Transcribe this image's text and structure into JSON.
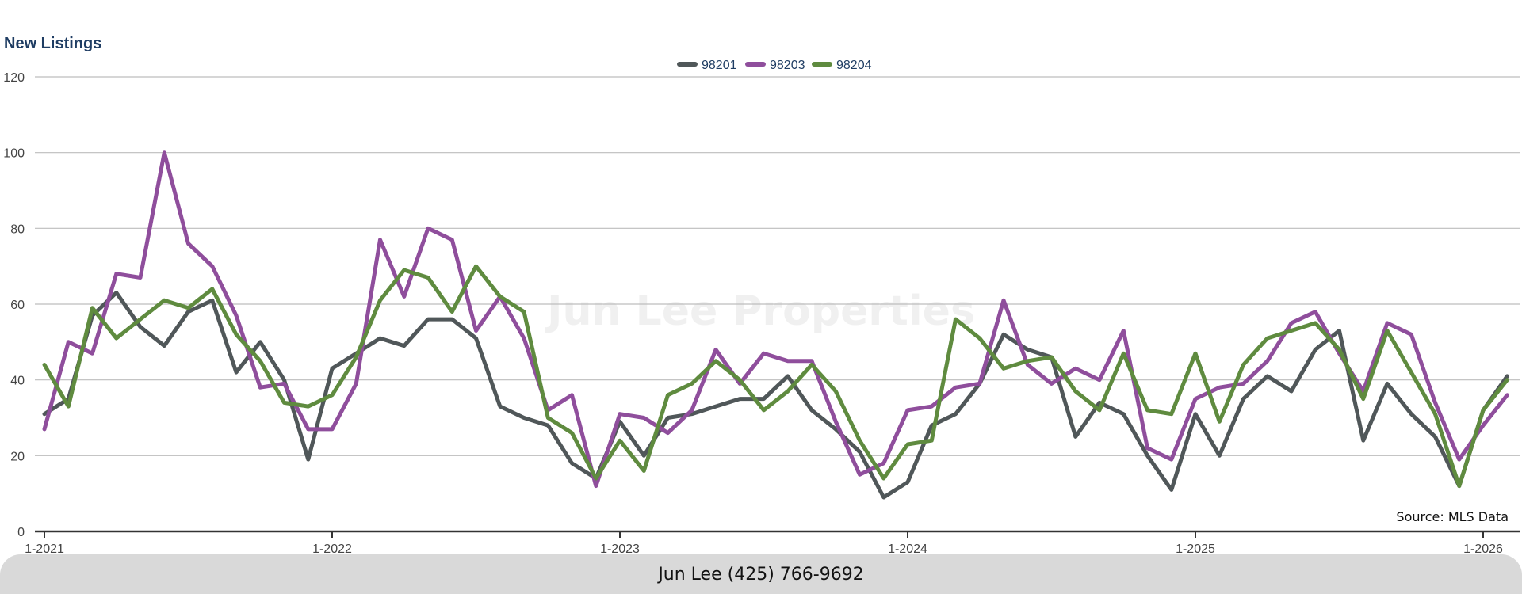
{
  "colors": {
    "98201": "#505759",
    "98203": "#8f4e9c",
    "98204": "#5f8b3f",
    "title": "#1f3d63",
    "grid": "#bdbdbd",
    "axis": "#333333",
    "watermark": "#f0f0f0"
  },
  "watermark": "Jun Lee Properties",
  "source": "Source: MLS Data",
  "footer": "Jun Lee (425) 766-9692",
  "chart_data": {
    "type": "line",
    "title": "New Listings",
    "xlabel": "",
    "ylabel": "",
    "ylim": [
      0,
      120
    ],
    "yticks": [
      0,
      20,
      40,
      60,
      80,
      100,
      120
    ],
    "x_tick_labels": [
      "1-2021",
      "1-2022",
      "1-2023",
      "1-2024",
      "1-2025",
      "1-2026"
    ],
    "x_start": "1-2021",
    "x_end": "2-2026",
    "legend_position": "top-center",
    "grid": true,
    "series": [
      {
        "name": "98201",
        "values": [
          31,
          35,
          57,
          63,
          54,
          49,
          58,
          61,
          42,
          50,
          40,
          19,
          43,
          47,
          51,
          49,
          56,
          56,
          51,
          33,
          30,
          28,
          18,
          14,
          29,
          20,
          30,
          31,
          33,
          35,
          35,
          41,
          32,
          27,
          21,
          9,
          13,
          28,
          31,
          39,
          52,
          48,
          46,
          25,
          34,
          31,
          20,
          11,
          31,
          20,
          35,
          41,
          37,
          48,
          53,
          24,
          39,
          31,
          25,
          12,
          32,
          41
        ]
      },
      {
        "name": "98203",
        "values": [
          27,
          50,
          47,
          68,
          67,
          100,
          76,
          70,
          57,
          38,
          39,
          27,
          27,
          39,
          77,
          62,
          80,
          77,
          53,
          62,
          51,
          32,
          36,
          12,
          31,
          30,
          26,
          32,
          48,
          39,
          47,
          45,
          45,
          29,
          15,
          18,
          32,
          33,
          38,
          39,
          61,
          44,
          39,
          43,
          40,
          53,
          22,
          19,
          35,
          38,
          39,
          45,
          55,
          58,
          47,
          37,
          55,
          52,
          34,
          19,
          28,
          36
        ]
      },
      {
        "name": "98204",
        "values": [
          44,
          33,
          59,
          51,
          56,
          61,
          59,
          64,
          52,
          45,
          34,
          33,
          36,
          46,
          61,
          69,
          67,
          58,
          70,
          62,
          58,
          30,
          26,
          14,
          24,
          16,
          36,
          39,
          45,
          40,
          32,
          37,
          44,
          37,
          24,
          14,
          23,
          24,
          56,
          51,
          43,
          45,
          46,
          37,
          32,
          47,
          32,
          31,
          47,
          29,
          44,
          51,
          53,
          55,
          48,
          35,
          53,
          42,
          31,
          12,
          32,
          40
        ]
      }
    ]
  }
}
